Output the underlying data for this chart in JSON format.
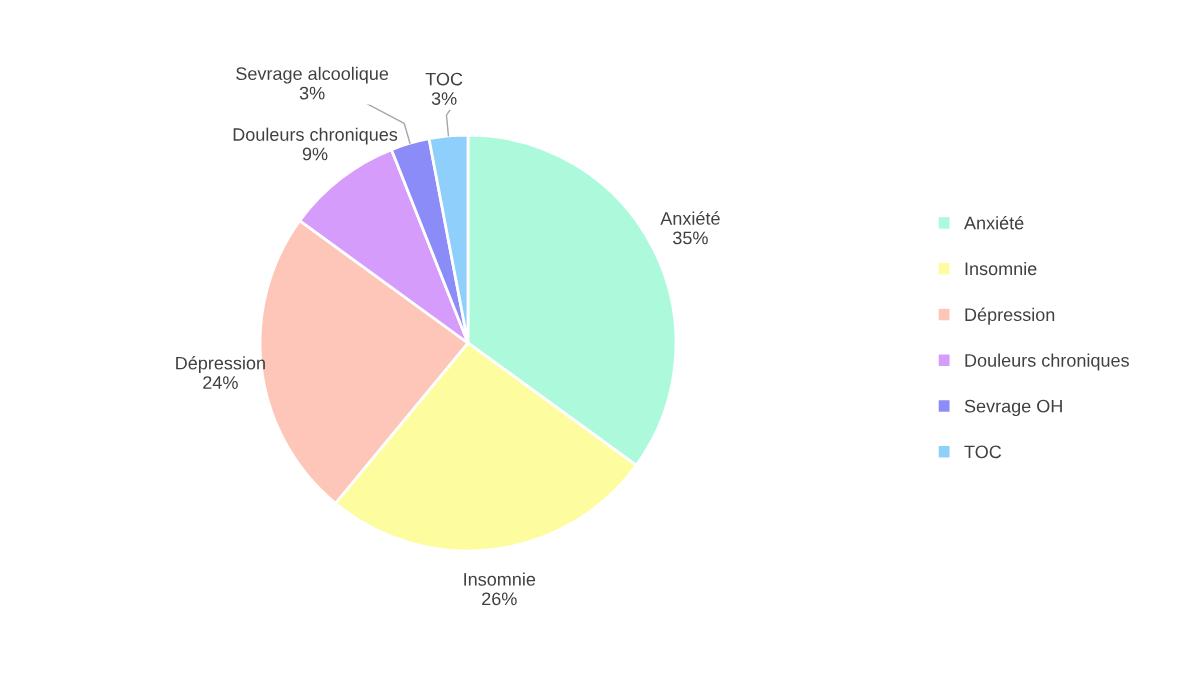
{
  "chart_data": {
    "type": "pie",
    "categories": [
      "Anxiété",
      "Insomnie",
      "Dépression",
      "Douleurs chroniques",
      "Sevrage OH",
      "TOC"
    ],
    "values": [
      35,
      26,
      24,
      9,
      3,
      3
    ],
    "colors": [
      "#adf9dc",
      "#fdfc9f",
      "#fec6b8",
      "#d69cfb",
      "#8c8cf9",
      "#8ed0fb"
    ],
    "value_labels": [
      "Anxiété\n35%",
      "Insomnie\n26%",
      "Dépression\n24%",
      "Douleurs chroniques\n9%",
      "Sevrage alcoolique\n3%",
      "TOC\n3%"
    ],
    "legend": "right"
  }
}
